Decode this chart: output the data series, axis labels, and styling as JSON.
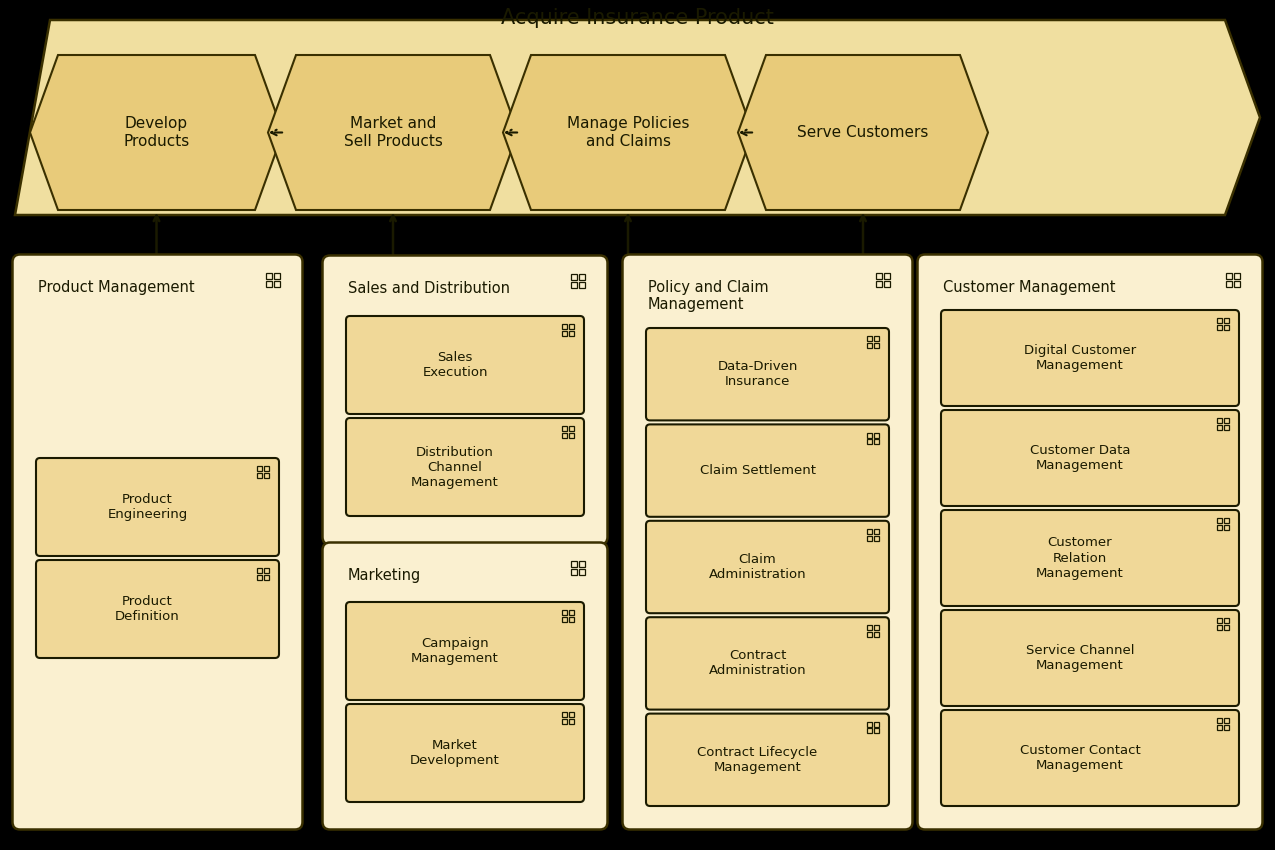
{
  "background_color": "#000000",
  "banner_fill": "#F0DFA0",
  "banner_stroke": "#3a3000",
  "chevron_fill": "#E8CB7A",
  "chevron_stroke": "#3a3000",
  "group_outer_fill": "#FAF0D0",
  "group_outer_stroke": "#3a3000",
  "item_fill": "#F0D898",
  "item_stroke": "#1a1a00",
  "title_top": "Acquire Insurance Product",
  "chevrons": [
    "Develop\nProducts",
    "Market and\nSell Products",
    "Manage Policies\nand Claims",
    "Serve Customers"
  ],
  "groups": [
    {
      "title": "Product Management",
      "col": 0,
      "row": 0,
      "rowspan": 2,
      "items": [
        "Product\nDefinition",
        "Product\nEngineering"
      ]
    },
    {
      "title": "Sales and Distribution",
      "col": 1,
      "row": 0,
      "rowspan": 1,
      "items": [
        "Distribution\nChannel\nManagement",
        "Sales\nExecution"
      ]
    },
    {
      "title": "Marketing",
      "col": 1,
      "row": 1,
      "rowspan": 1,
      "items": [
        "Market\nDevelopment",
        "Campaign\nManagement"
      ]
    },
    {
      "title": "Policy and Claim\nManagement",
      "col": 2,
      "row": 0,
      "rowspan": 2,
      "items": [
        "Contract Lifecycle\nManagement",
        "Contract\nAdministration",
        "Claim\nAdministration",
        "Claim Settlement",
        "Data-Driven\nInsurance"
      ]
    },
    {
      "title": "Customer Management",
      "col": 3,
      "row": 0,
      "rowspan": 2,
      "items": [
        "Customer Contact\nManagement",
        "Service Channel\nManagement",
        "Customer\nRelation\nManagement",
        "Customer Data\nManagement",
        "Digital Customer\nManagement"
      ]
    }
  ]
}
